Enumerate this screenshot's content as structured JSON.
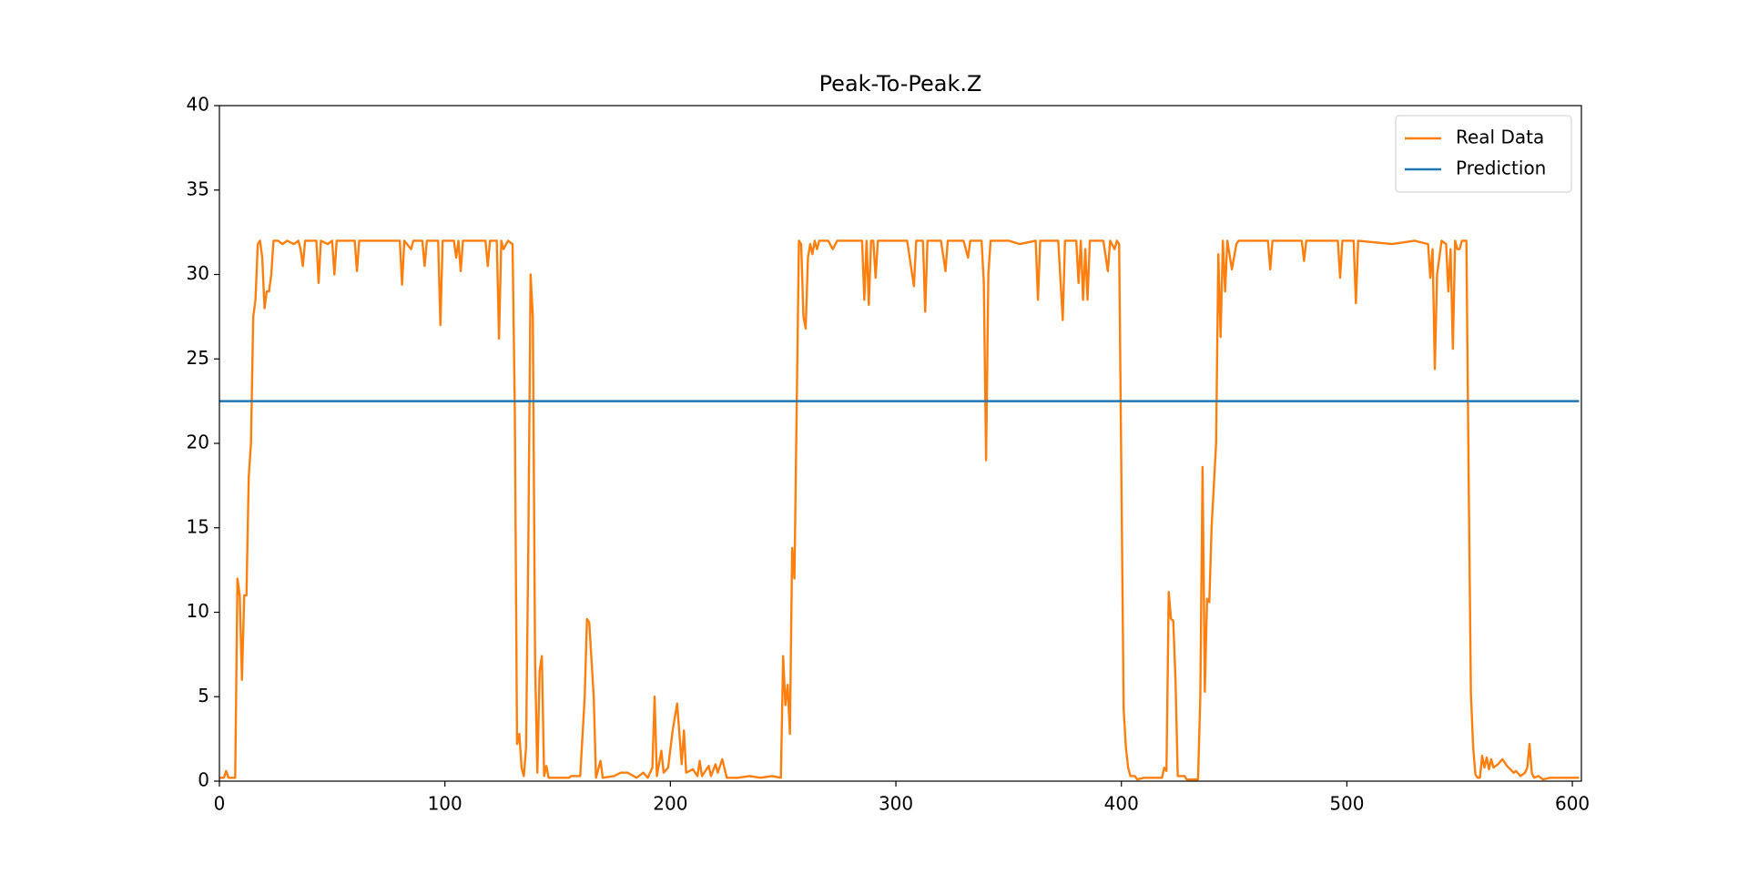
{
  "chart_data": {
    "type": "line",
    "title": "Peak-To-Peak.Z",
    "xlim": [
      0,
      604
    ],
    "xticks": [
      0,
      100,
      200,
      300,
      400,
      500,
      600
    ],
    "ylim": [
      0,
      40
    ],
    "yticks": [
      0,
      5,
      10,
      15,
      20,
      25,
      30,
      35,
      40
    ],
    "grid": false,
    "legend": "upper right",
    "series": [
      {
        "name": "Real Data",
        "color": "#ff7f0e",
        "x": [
          0,
          2,
          3,
          4,
          7,
          8,
          9,
          10,
          11,
          12,
          13,
          14,
          15,
          16,
          17,
          18,
          19,
          20,
          21,
          22,
          23,
          24,
          26,
          28,
          30,
          33,
          35,
          36,
          37,
          38,
          43,
          44,
          45,
          48,
          50,
          51,
          52,
          60,
          61,
          62,
          80,
          81,
          82,
          85,
          86,
          90,
          91,
          92,
          97,
          98,
          99,
          104,
          105,
          106,
          107,
          108,
          118,
          119,
          120,
          123,
          124,
          125,
          126,
          128,
          130,
          131,
          132,
          133,
          134,
          135,
          136,
          137,
          138,
          139,
          140,
          141,
          142,
          143,
          144,
          145,
          146,
          150,
          155,
          156,
          160,
          162,
          163,
          164,
          166,
          167,
          169,
          170,
          175,
          178,
          181,
          185,
          188,
          190,
          192,
          193,
          194,
          196,
          197,
          199,
          201,
          203,
          205,
          206,
          207,
          210,
          212,
          213,
          214,
          217,
          218,
          220,
          221,
          223,
          225,
          230,
          235,
          240,
          245,
          249,
          250,
          251,
          252,
          253,
          254,
          255,
          256,
          257,
          258,
          259,
          260,
          261,
          262,
          263,
          264,
          265,
          266,
          270,
          272,
          274,
          285,
          286,
          287,
          288,
          289,
          290,
          291,
          292,
          305,
          308,
          309,
          312,
          313,
          314,
          320,
          322,
          323,
          330,
          332,
          333,
          338,
          339,
          340,
          341,
          342,
          350,
          355,
          362,
          363,
          364,
          372,
          374,
          375,
          380,
          381,
          382,
          383,
          384,
          385,
          386,
          392,
          394,
          395,
          397,
          398,
          399,
          400,
          401,
          402,
          403,
          404,
          406,
          407,
          410,
          415,
          418,
          419,
          420,
          421,
          422,
          423,
          424,
          425,
          428,
          429,
          434,
          435,
          436,
          437,
          438,
          439,
          440,
          442,
          443,
          444,
          445,
          446,
          447,
          449,
          451,
          452,
          465,
          466,
          467,
          480,
          481,
          482,
          496,
          497,
          498,
          503,
          504,
          505,
          520,
          530,
          536,
          537,
          538,
          539,
          540,
          542,
          544,
          545,
          546,
          547,
          548,
          549,
          550,
          551,
          553,
          554,
          555,
          556,
          557,
          558,
          559,
          560,
          561,
          562,
          563,
          564,
          565,
          567,
          569,
          571,
          574,
          575,
          577,
          579,
          580,
          581,
          582,
          583,
          585,
          587,
          590,
          595,
          600,
          603
        ],
        "values": [
          0.2,
          0.2,
          0.6,
          0.2,
          0.2,
          12,
          11,
          6,
          11,
          11,
          18,
          20,
          27.5,
          28.5,
          31.8,
          32,
          31,
          28,
          29,
          29,
          30,
          32,
          32,
          31.8,
          32,
          31.8,
          32,
          31.5,
          30.5,
          32,
          32,
          29.5,
          32,
          31.8,
          32,
          30,
          32,
          32,
          30.2,
          32,
          32,
          29.4,
          32,
          31.5,
          32,
          32,
          30.5,
          32,
          32,
          27,
          32,
          32,
          31,
          32,
          30.2,
          32,
          32,
          30.5,
          32,
          32,
          26.2,
          32,
          31.5,
          32,
          31.8,
          22,
          2.2,
          2.8,
          0.8,
          0.3,
          2,
          14,
          30,
          27.5,
          7,
          0.5,
          6.5,
          7.4,
          0.3,
          0.9,
          0.2,
          0.2,
          0.2,
          0.3,
          0.3,
          5,
          9.6,
          9.4,
          5,
          0.2,
          1.2,
          0.2,
          0.3,
          0.5,
          0.5,
          0.2,
          0.5,
          0.2,
          0.8,
          5,
          0.3,
          1.8,
          0.5,
          0.8,
          3,
          4.6,
          1,
          3,
          0.5,
          0.7,
          0.3,
          1.2,
          0.3,
          0.9,
          0.3,
          1,
          0.5,
          1.3,
          0.2,
          0.2,
          0.3,
          0.2,
          0.3,
          0.2,
          7.4,
          4.5,
          5.7,
          2.8,
          13.8,
          12,
          22,
          32,
          31.8,
          27.5,
          26.8,
          31,
          31.8,
          31.2,
          32,
          31.5,
          32,
          32,
          31.5,
          32,
          32,
          28.5,
          32,
          28.2,
          32,
          32,
          29.8,
          32,
          32,
          29.3,
          32,
          32,
          27.8,
          32,
          32,
          30.2,
          32,
          32,
          31,
          32,
          32,
          29.5,
          19,
          30,
          32,
          32,
          31.8,
          32,
          28.5,
          32,
          32,
          27.3,
          32,
          32,
          29.5,
          32,
          28.5,
          31.5,
          28.5,
          32,
          32,
          30.2,
          32,
          31.5,
          32,
          31.8,
          18,
          4.3,
          2,
          0.8,
          0.3,
          0.3,
          0.1,
          0.2,
          0.2,
          0.2,
          0.8,
          0.6,
          11.2,
          9.6,
          9.5,
          6,
          0.3,
          0.3,
          0.1,
          0.1,
          5,
          18.6,
          5.3,
          10.8,
          10.6,
          15,
          20,
          31.2,
          26.3,
          32,
          29,
          32,
          30.3,
          31.8,
          32,
          32,
          30.3,
          32,
          32,
          30.8,
          32,
          32,
          29.8,
          32,
          32,
          28.3,
          32,
          31.8,
          32,
          31.8,
          29.8,
          31.5,
          24.4,
          30,
          32,
          31.8,
          29,
          31.5,
          25.6,
          32,
          31.5,
          31.5,
          32,
          32,
          18,
          5.2,
          2,
          0.4,
          0.2,
          0.2,
          1.5,
          0.8,
          1.4,
          0.7,
          1.3,
          0.8,
          1,
          1.3,
          0.9,
          0.5,
          0.6,
          0.3,
          0.5,
          0.8,
          2.2,
          0.5,
          0.2,
          0.3,
          0.1,
          0.2,
          0.2,
          0.2,
          0.2
        ]
      },
      {
        "name": "Prediction",
        "color": "#1f77b4",
        "x": [
          0,
          603
        ],
        "values": [
          22.5,
          22.5
        ]
      }
    ]
  }
}
